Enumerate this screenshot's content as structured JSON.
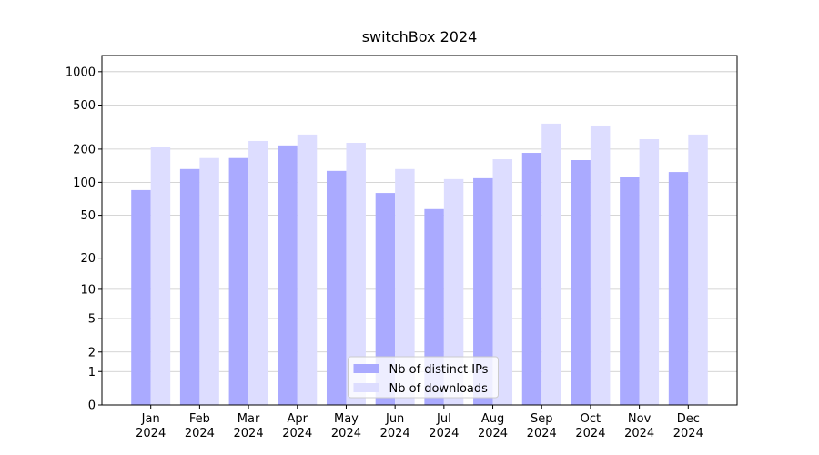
{
  "chart_data": {
    "type": "bar",
    "title": "switchBox 2024",
    "categories": [
      "Jan\n2024",
      "Feb\n2024",
      "Mar\n2024",
      "Apr\n2024",
      "May\n2024",
      "Jun\n2024",
      "Jul\n2024",
      "Aug\n2024",
      "Sep\n2024",
      "Oct\n2024",
      "Nov\n2024",
      "Dec\n2024"
    ],
    "series": [
      {
        "name": "Nb of distinct IPs",
        "color": "#aaaaff",
        "values": [
          85,
          132,
          166,
          216,
          127,
          80,
          57,
          109,
          185,
          159,
          111,
          124
        ]
      },
      {
        "name": "Nb of downloads",
        "color": "#ddddff",
        "values": [
          208,
          166,
          237,
          271,
          228,
          132,
          107,
          162,
          340,
          327,
          246,
          271
        ]
      }
    ],
    "yscale": "log1p",
    "ylim": [
      0,
      1400
    ],
    "yticks": [
      0,
      1,
      2,
      5,
      10,
      20,
      50,
      100,
      200,
      500,
      1000
    ],
    "grid": true,
    "legend": "lower center"
  }
}
